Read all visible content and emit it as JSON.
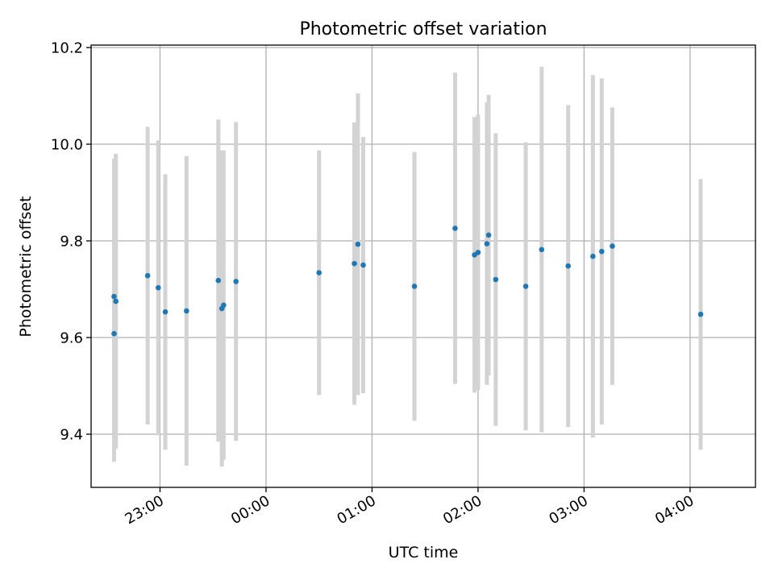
{
  "chart_data": {
    "type": "scatter",
    "title": "Photometric offset variation",
    "xlabel": "UTC time",
    "ylabel": "Photometric offset",
    "x_axis_type": "time",
    "xlim": [
      "22:21",
      "04:37"
    ],
    "ylim": [
      9.29,
      10.205
    ],
    "x_ticks": [
      {
        "value": "23:00",
        "label": "23:00"
      },
      {
        "value": "24:00",
        "label": "00:00"
      },
      {
        "value": "25:00",
        "label": "01:00"
      },
      {
        "value": "26:00",
        "label": "02:00"
      },
      {
        "value": "27:00",
        "label": "03:00"
      },
      {
        "value": "28:00",
        "label": "04:00"
      }
    ],
    "y_ticks": [
      {
        "value": 9.4,
        "label": "9.4"
      },
      {
        "value": 9.6,
        "label": "9.6"
      },
      {
        "value": 9.8,
        "label": "9.8"
      },
      {
        "value": 10.0,
        "label": "10.0"
      },
      {
        "value": 10.2,
        "label": "10.2"
      }
    ],
    "grid": true,
    "colors": {
      "marker": "#1f77b4",
      "errorbar": "#d3d3d3",
      "grid": "#b0b0b0"
    },
    "points": [
      {
        "x": "22:34",
        "y": 9.608,
        "err": 0.265
      },
      {
        "x": "22:34",
        "y": 9.685,
        "err": 0.285
      },
      {
        "x": "22:35",
        "y": 9.675,
        "err": 0.305
      },
      {
        "x": "22:53",
        "y": 9.728,
        "err": 0.308
      },
      {
        "x": "22:59",
        "y": 9.703,
        "err": 0.305
      },
      {
        "x": "23:03",
        "y": 9.653,
        "err": 0.285
      },
      {
        "x": "23:15",
        "y": 9.655,
        "err": 0.32
      },
      {
        "x": "23:33",
        "y": 9.718,
        "err": 0.333
      },
      {
        "x": "23:35",
        "y": 9.66,
        "err": 0.327
      },
      {
        "x": "23:36",
        "y": 9.667,
        "err": 0.32
      },
      {
        "x": "23:43",
        "y": 9.716,
        "err": 0.33
      },
      {
        "x": "00:30",
        "y": 9.734,
        "err": 0.253
      },
      {
        "x": "00:50",
        "y": 9.753,
        "err": 0.292
      },
      {
        "x": "00:52",
        "y": 9.793,
        "err": 0.312
      },
      {
        "x": "00:55",
        "y": 9.75,
        "err": 0.265
      },
      {
        "x": "01:24",
        "y": 9.706,
        "err": 0.278
      },
      {
        "x": "01:47",
        "y": 9.826,
        "err": 0.322
      },
      {
        "x": "01:58",
        "y": 9.771,
        "err": 0.285
      },
      {
        "x": "02:00",
        "y": 9.776,
        "err": 0.285
      },
      {
        "x": "02:05",
        "y": 9.794,
        "err": 0.292
      },
      {
        "x": "02:06",
        "y": 9.812,
        "err": 0.29
      },
      {
        "x": "02:10",
        "y": 9.72,
        "err": 0.303
      },
      {
        "x": "02:27",
        "y": 9.706,
        "err": 0.298
      },
      {
        "x": "02:36",
        "y": 9.782,
        "err": 0.378
      },
      {
        "x": "02:51",
        "y": 9.748,
        "err": 0.333
      },
      {
        "x": "03:05",
        "y": 9.768,
        "err": 0.375
      },
      {
        "x": "03:10",
        "y": 9.778,
        "err": 0.358
      },
      {
        "x": "03:16",
        "y": 9.789,
        "err": 0.287
      },
      {
        "x": "04:06",
        "y": 9.648,
        "err": 0.28
      }
    ]
  }
}
